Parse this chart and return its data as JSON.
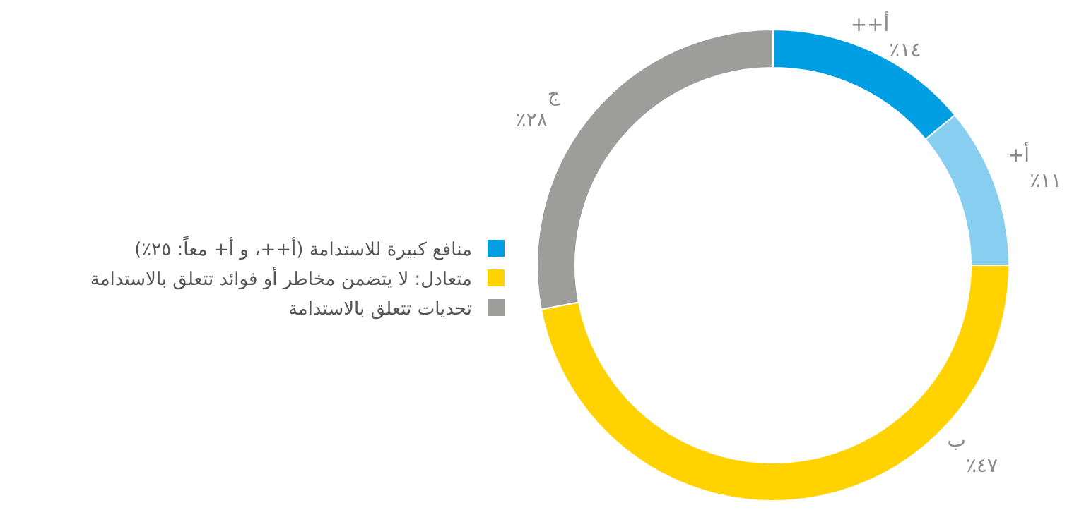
{
  "chart_data": {
    "type": "donut",
    "categories": [
      "أ++",
      "أ+",
      "ب",
      "ج"
    ],
    "values": [
      14,
      11,
      47,
      28
    ],
    "colors": [
      "#009fe3",
      "#87cef0",
      "#ffd200",
      "#9d9d9c"
    ],
    "value_labels": [
      "٪١٤",
      "٪١١",
      "٪٤٧",
      "٪٢٨"
    ],
    "annotations": [
      "منافع كبيرة للاستدامة (أ++، و أ+ معاً: ٢٥٪)",
      "متعادل: لا يتضمن مخاطر أو فوائد تتعلق بالاستدامة",
      "تحديات تتعلق بالاستدامة"
    ]
  }
}
